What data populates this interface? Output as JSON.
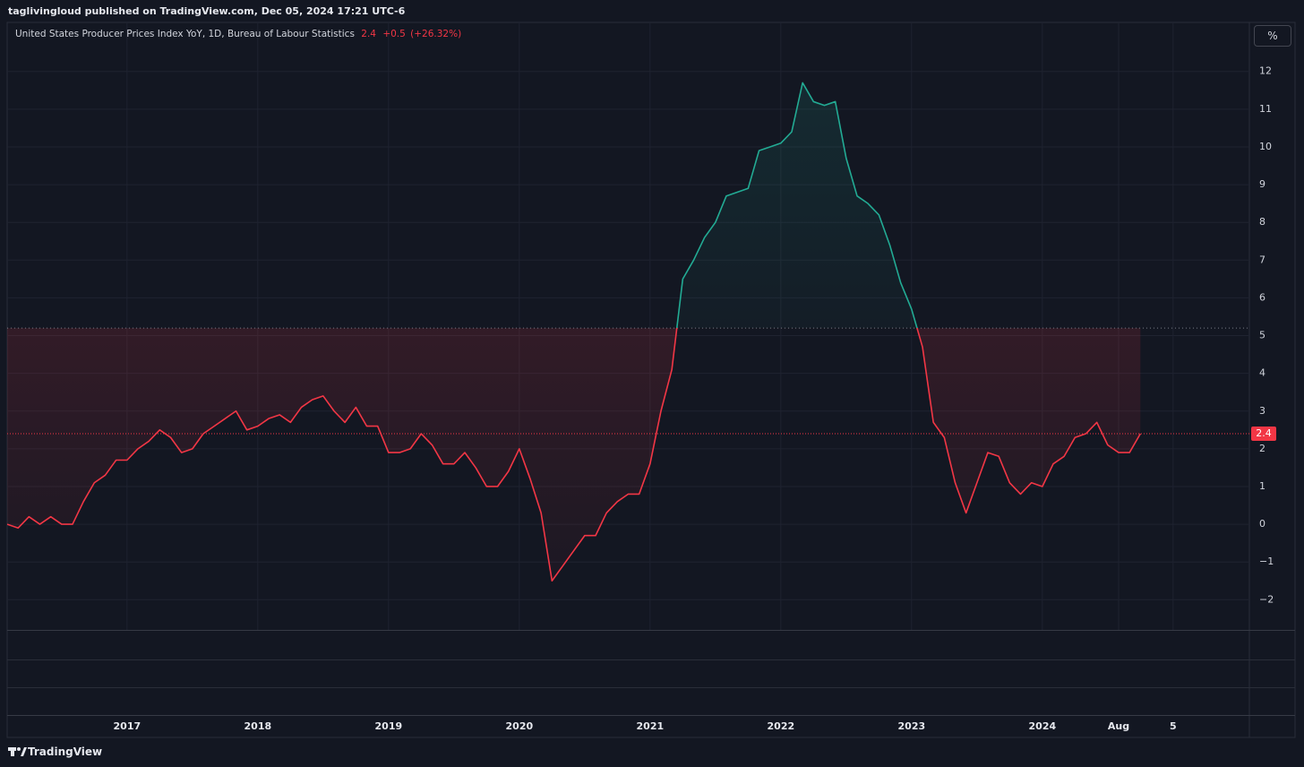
{
  "header": "taglivingloud published on TradingView.com, Dec 05, 2024 17:21 UTC-6",
  "brand": "TradingView",
  "scale_button": "%",
  "chart_data": {
    "type": "line",
    "legend": {
      "name": "United States Producer Prices Index YoY, 1D, Bureau of Labour Statistics",
      "value": "2.4",
      "change": "+0.5",
      "change_pct": "(+26.32%)"
    },
    "last_value_label": "2.4",
    "baseline": 5.2,
    "x": [
      "2016-02",
      "2016-03",
      "2016-04",
      "2016-05",
      "2016-06",
      "2016-07",
      "2016-08",
      "2016-09",
      "2016-10",
      "2016-11",
      "2016-12",
      "2017-01",
      "2017-02",
      "2017-03",
      "2017-04",
      "2017-05",
      "2017-06",
      "2017-07",
      "2017-08",
      "2017-09",
      "2017-10",
      "2017-11",
      "2017-12",
      "2018-01",
      "2018-02",
      "2018-03",
      "2018-04",
      "2018-05",
      "2018-06",
      "2018-07",
      "2018-08",
      "2018-09",
      "2018-10",
      "2018-11",
      "2018-12",
      "2019-01",
      "2019-02",
      "2019-03",
      "2019-04",
      "2019-05",
      "2019-06",
      "2019-07",
      "2019-08",
      "2019-09",
      "2019-10",
      "2019-11",
      "2019-12",
      "2020-01",
      "2020-02",
      "2020-03",
      "2020-04",
      "2020-05",
      "2020-06",
      "2020-07",
      "2020-08",
      "2020-09",
      "2020-10",
      "2020-11",
      "2020-12",
      "2021-01",
      "2021-02",
      "2021-03",
      "2021-04",
      "2021-05",
      "2021-06",
      "2021-07",
      "2021-08",
      "2021-09",
      "2021-10",
      "2021-11",
      "2021-12",
      "2022-01",
      "2022-02",
      "2022-03",
      "2022-04",
      "2022-05",
      "2022-06",
      "2022-07",
      "2022-08",
      "2022-09",
      "2022-10",
      "2022-11",
      "2022-12",
      "2023-01",
      "2023-02",
      "2023-03",
      "2023-04",
      "2023-05",
      "2023-06",
      "2023-07",
      "2023-08",
      "2023-09",
      "2023-10",
      "2023-11",
      "2023-12",
      "2024-01",
      "2024-02",
      "2024-03",
      "2024-04",
      "2024-05",
      "2024-06",
      "2024-07",
      "2024-08",
      "2024-09",
      "2024-10"
    ],
    "series": [
      {
        "color": "#f23645",
        "color_above": "#22ab94",
        "values": [
          0.0,
          -0.1,
          0.2,
          0.0,
          0.2,
          0.0,
          0.0,
          0.6,
          1.1,
          1.3,
          1.7,
          1.7,
          2.0,
          2.2,
          2.5,
          2.3,
          1.9,
          2.0,
          2.4,
          2.6,
          2.8,
          3.0,
          2.5,
          2.6,
          2.8,
          2.9,
          2.7,
          3.1,
          3.3,
          3.4,
          3.0,
          2.7,
          3.1,
          2.6,
          2.6,
          1.9,
          1.9,
          2.0,
          2.4,
          2.1,
          1.6,
          1.6,
          1.9,
          1.5,
          1.0,
          1.0,
          1.4,
          2.0,
          1.2,
          0.3,
          -1.5,
          -1.1,
          -0.7,
          -0.3,
          -0.3,
          0.3,
          0.6,
          0.8,
          0.8,
          1.6,
          3.0,
          4.1,
          6.5,
          7.0,
          7.6,
          8.0,
          8.7,
          8.8,
          8.9,
          9.9,
          10.0,
          10.1,
          10.4,
          11.7,
          11.2,
          11.1,
          11.2,
          9.7,
          8.7,
          8.5,
          8.2,
          7.4,
          6.4,
          5.7,
          4.7,
          2.7,
          2.3,
          1.1,
          0.3,
          1.1,
          1.9,
          1.8,
          1.1,
          0.8,
          1.1,
          1.0,
          1.6,
          1.8,
          2.3,
          2.4,
          2.7,
          2.1,
          1.9,
          1.9,
          2.4
        ]
      }
    ],
    "xlim": [
      "2016-02",
      "2025-08"
    ],
    "xticks": [
      {
        "value": "2017-01",
        "label": "2017"
      },
      {
        "value": "2018-01",
        "label": "2018"
      },
      {
        "value": "2019-01",
        "label": "2019"
      },
      {
        "value": "2020-01",
        "label": "2020"
      },
      {
        "value": "2021-01",
        "label": "2021"
      },
      {
        "value": "2022-01",
        "label": "2022"
      },
      {
        "value": "2023-01",
        "label": "2023"
      },
      {
        "value": "2024-01",
        "label": "2024"
      },
      {
        "value": "2024-08",
        "label": "Aug"
      },
      {
        "value": "2025-01",
        "label": "5"
      }
    ],
    "ylim": [
      -2.8,
      13.3
    ],
    "yticks": [
      {
        "value": -2,
        "label": "−2"
      },
      {
        "value": -1,
        "label": "−1"
      },
      0,
      1,
      2,
      3,
      4,
      5,
      6,
      7,
      8,
      9,
      10,
      11,
      12
    ],
    "grid": true
  }
}
